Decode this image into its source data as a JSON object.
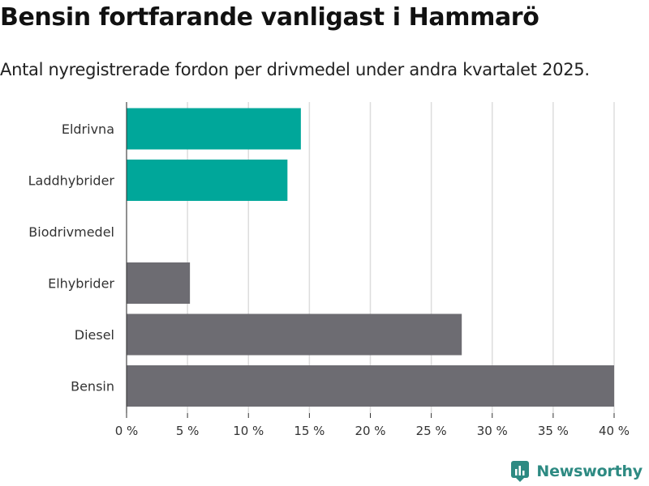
{
  "title": "Bensin fortfarande vanligast i Hammarö",
  "subtitle": "Antal nyregistrerade fordon per drivmedel under andra kvartalet 2025.",
  "brand": "Newsworthy",
  "colors": {
    "highlight": "#00a79a",
    "default": "#6d6c72",
    "grid": "#dddddd",
    "brand": "#2d8a82"
  },
  "chart_data": {
    "type": "bar",
    "orientation": "horizontal",
    "categories": [
      "Eldrivna",
      "Laddhybrider",
      "Biodrivmedel",
      "Elhybrider",
      "Diesel",
      "Bensin"
    ],
    "values": [
      14.3,
      13.2,
      0,
      5.2,
      27.5,
      40.0
    ],
    "highlighted": [
      true,
      true,
      false,
      false,
      false,
      false
    ],
    "xlim": [
      0,
      40
    ],
    "xticks": [
      0,
      5,
      10,
      15,
      20,
      25,
      30,
      35,
      40
    ],
    "xtick_labels": [
      "0 %",
      "5 %",
      "10 %",
      "15 %",
      "20 %",
      "25 %",
      "30 %",
      "35 %",
      "40 %"
    ],
    "xlabel": "",
    "ylabel": "",
    "grid": true,
    "legend": "none"
  }
}
